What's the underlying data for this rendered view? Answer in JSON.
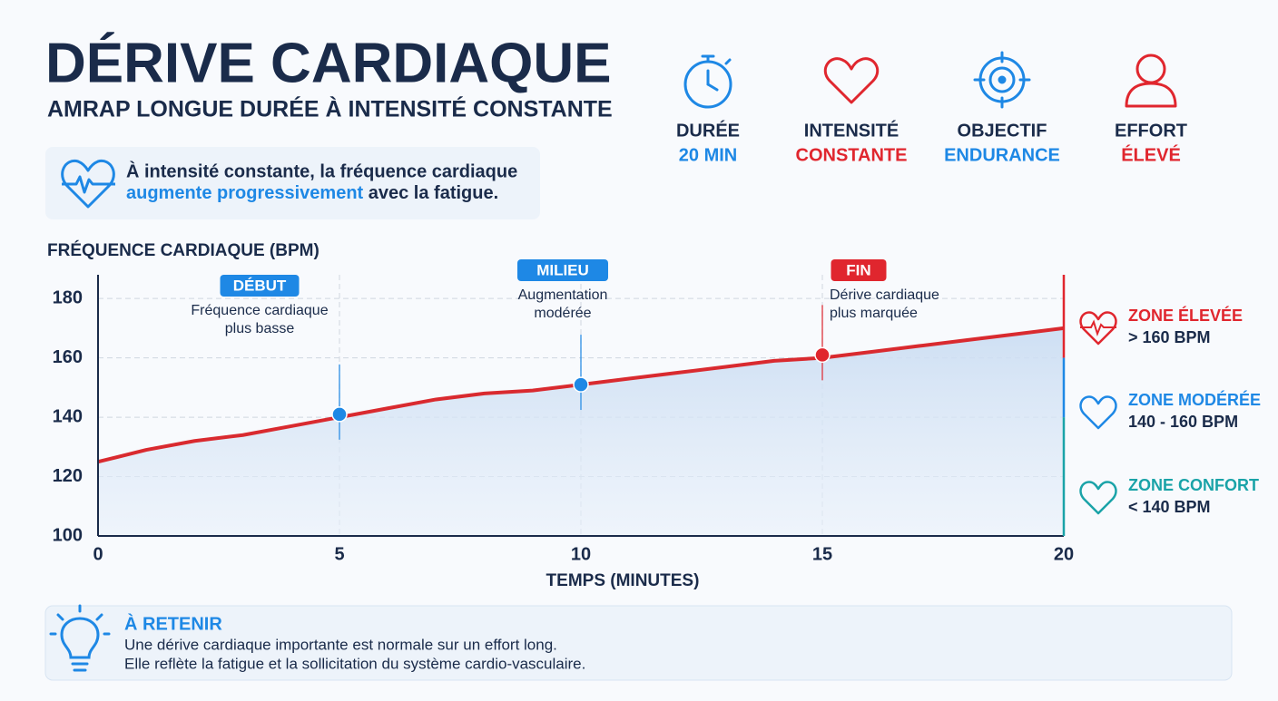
{
  "header": {
    "title": "DÉRIVE CARDIAQUE",
    "subtitle": "AMRAP LONGUE DURÉE À INTENSITÉ CONSTANTE"
  },
  "stats": [
    {
      "label": "DURÉE",
      "value": "20 MIN",
      "color": "#1e88e5"
    },
    {
      "label": "INTENSITÉ",
      "value": "CONSTANTE",
      "color": "#e0262e"
    },
    {
      "label": "OBJECTIF",
      "value": "ENDURANCE",
      "color": "#1e88e5"
    },
    {
      "label": "EFFORT",
      "value": "ÉLEVÉ",
      "color": "#e0262e"
    }
  ],
  "info": {
    "line1": "À intensité constante, la fréquence cardiaque",
    "highlight": "augmente progressivement",
    "rest": " avec la fatigue."
  },
  "chart_data": {
    "type": "line",
    "y_label": "FRÉQUENCE CARDIAQUE (BPM)",
    "x_label": "TEMPS (MINUTES)",
    "x": [
      0,
      1,
      2,
      3,
      4,
      5,
      6,
      7,
      8,
      9,
      10,
      11,
      12,
      13,
      14,
      15,
      16,
      17,
      18,
      19,
      20
    ],
    "series": [
      {
        "color": "#d92a2f",
        "values": [
          125,
          129,
          132,
          134,
          137,
          140,
          143,
          146,
          148,
          149,
          151,
          153,
          155,
          157,
          159,
          160,
          162,
          164,
          166,
          168,
          170
        ]
      }
    ],
    "xlim": [
      0,
      20
    ],
    "xticks": [
      0,
      5,
      10,
      15,
      20
    ],
    "ylim": [
      100,
      188
    ],
    "yticks": [
      100,
      120,
      140,
      160,
      180
    ],
    "grid": true,
    "markers": [
      {
        "x": 5,
        "y": 141,
        "label": "DÉBUT",
        "text": [
          "Fréquence cardiaque",
          "plus basse"
        ],
        "color": "#1e88e5"
      },
      {
        "x": 10,
        "y": 151,
        "label": "MILIEU",
        "text": [
          "Augmentation",
          "modérée"
        ],
        "color": "#1e88e5"
      },
      {
        "x": 15,
        "y": 161,
        "label": "FIN",
        "text": [
          "Dérive cardiaque",
          "plus marquée"
        ],
        "color": "#e0262e"
      }
    ],
    "zones": [
      {
        "name": "ZONE ÉLEVÉE",
        "range_text": "> 160 BPM",
        "range": [
          160,
          188
        ],
        "color": "#e0262e"
      },
      {
        "name": "ZONE MODÉRÉE",
        "range_text": "140 - 160 BPM",
        "range": [
          140,
          160
        ],
        "color": "#1e88e5"
      },
      {
        "name": "ZONE CONFORT",
        "range_text": "< 140 BPM",
        "range": [
          100,
          140
        ],
        "color": "#1aa3a8"
      }
    ]
  },
  "footer": {
    "title": "À RETENIR",
    "lines": [
      "Une dérive cardiaque importante est normale sur un effort long.",
      "Elle reflète la fatigue et la sollicitation du système cardio-vasculaire."
    ]
  }
}
